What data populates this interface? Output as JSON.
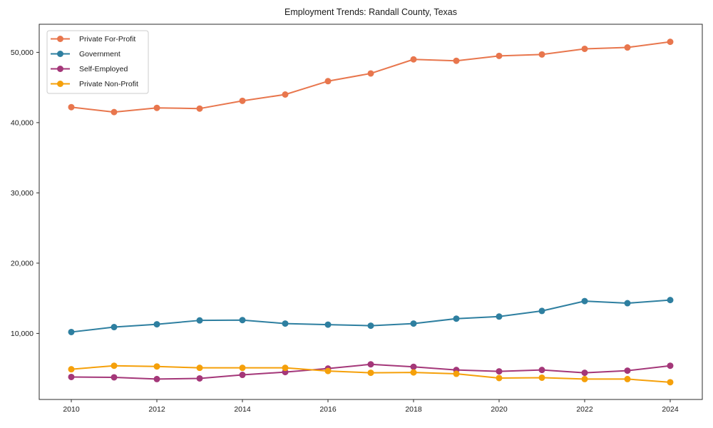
{
  "chart_data": {
    "type": "line",
    "title": "Employment Trends: Randall County, Texas",
    "xlabel": "",
    "ylabel": "",
    "x": [
      2010,
      2011,
      2012,
      2013,
      2014,
      2015,
      2016,
      2017,
      2018,
      2019,
      2020,
      2021,
      2022,
      2023,
      2024
    ],
    "x_tick_labels": [
      "2010",
      "2012",
      "2014",
      "2016",
      "2018",
      "2020",
      "2022",
      "2024"
    ],
    "x_tick_values": [
      2010,
      2012,
      2014,
      2016,
      2018,
      2020,
      2022,
      2024
    ],
    "y_tick_labels": [
      "10,000",
      "20,000",
      "30,000",
      "40,000",
      "50,000"
    ],
    "y_tick_values": [
      10000,
      20000,
      30000,
      40000,
      50000
    ],
    "xlim": [
      2009.25,
      2024.75
    ],
    "ylim": [
      600,
      54000
    ],
    "grid": false,
    "legend_position": "upper-left",
    "series": [
      {
        "name": "Private For-Profit",
        "color": "#e8764d",
        "values": [
          42200,
          41500,
          42100,
          42000,
          43100,
          44000,
          45900,
          47000,
          49000,
          48800,
          49500,
          49700,
          50500,
          50700,
          51500
        ]
      },
      {
        "name": "Government",
        "color": "#2e7fa0",
        "values": [
          10200,
          10900,
          11300,
          11850,
          11900,
          11400,
          11250,
          11100,
          11400,
          12100,
          12400,
          13200,
          14600,
          14300,
          14750
        ]
      },
      {
        "name": "Self-Employed",
        "color": "#a43779",
        "values": [
          3800,
          3750,
          3500,
          3600,
          4100,
          4500,
          5000,
          5600,
          5250,
          4800,
          4600,
          4800,
          4400,
          4700,
          5400
        ]
      },
      {
        "name": "Private Non-Profit",
        "color": "#f5a00a",
        "values": [
          4900,
          5400,
          5300,
          5100,
          5100,
          5100,
          4650,
          4400,
          4450,
          4250,
          3650,
          3700,
          3500,
          3500,
          3050
        ]
      }
    ],
    "styles": {
      "axis_color": "#2b2b2b",
      "text_color": "#1a1a1a",
      "legend_border": "#cccccc",
      "background": "#ffffff"
    }
  }
}
